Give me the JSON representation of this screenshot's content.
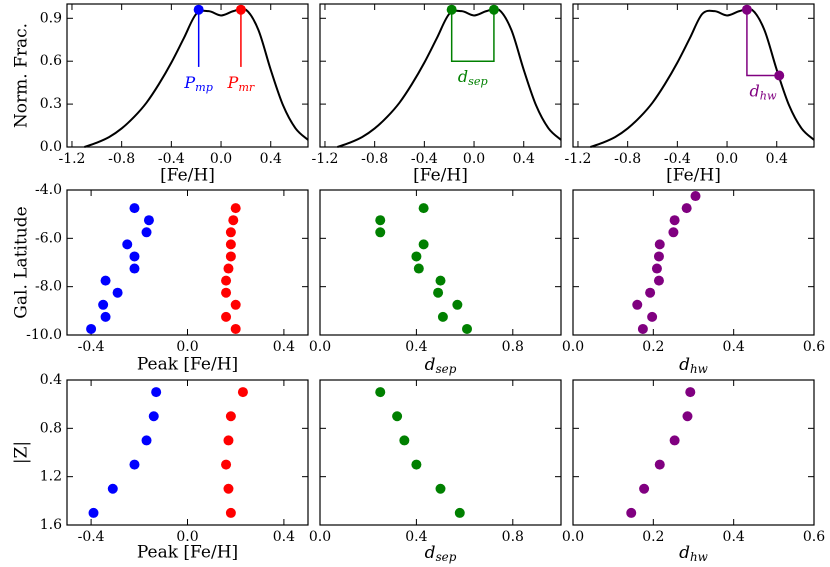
{
  "chart_data": [
    {
      "type": "line",
      "xlabel": "[Fe/H]",
      "ylabel": "Norm. Frac.",
      "xlim": [
        -1.24,
        0.7
      ],
      "ylim": [
        0,
        1.0
      ],
      "xticks": [
        -1.2,
        -0.8,
        -0.4,
        {
          "value": 0,
          "label": "0.0"
        },
        0.4
      ],
      "yticks": [
        {
          "value": 0,
          "label": "0.0"
        },
        0.3,
        0.6,
        0.9
      ],
      "x": [
        -1.1,
        -1.0,
        -0.9,
        -0.8,
        -0.7,
        -0.6,
        -0.5,
        -0.4,
        -0.3,
        -0.2,
        -0.1,
        0.0,
        0.1,
        0.2,
        0.3,
        0.4,
        0.5,
        0.6,
        0.7
      ],
      "series": [
        {
          "color": "#000000",
          "values": [
            0.0,
            0.03,
            0.07,
            0.13,
            0.21,
            0.31,
            0.44,
            0.59,
            0.76,
            0.93,
            0.95,
            0.92,
            0.95,
            0.96,
            0.82,
            0.54,
            0.29,
            0.13,
            0.05
          ]
        }
      ],
      "annotations": [
        {
          "color": "#0000ff",
          "label": {
            "main": "P",
            "sub": "mp"
          },
          "path_x": [
            -0.18,
            -0.18
          ],
          "path_y": [
            0.96,
            0.56
          ],
          "points_x": [
            -0.18
          ],
          "points_y": [
            0.96
          ]
        },
        {
          "color": "#ff0000",
          "label": {
            "main": "P",
            "sub": "mr"
          },
          "path_x": [
            0.16,
            0.16
          ],
          "path_y": [
            0.96,
            0.56
          ],
          "points_x": [
            0.16
          ],
          "points_y": [
            0.96
          ]
        }
      ]
    },
    {
      "type": "line",
      "xlabel": "[Fe/H]",
      "xlim": [
        -1.24,
        0.7
      ],
      "ylim": [
        0,
        1.0
      ],
      "xticks": [
        -1.2,
        -0.8,
        -0.4,
        {
          "value": 0,
          "label": "0.0"
        },
        0.4
      ],
      "x": [
        -1.1,
        -1.0,
        -0.9,
        -0.8,
        -0.7,
        -0.6,
        -0.5,
        -0.4,
        -0.3,
        -0.2,
        -0.1,
        0.0,
        0.1,
        0.2,
        0.3,
        0.4,
        0.5,
        0.6,
        0.7
      ],
      "series": [
        {
          "color": "#000000",
          "values": [
            0.0,
            0.03,
            0.07,
            0.13,
            0.21,
            0.31,
            0.44,
            0.59,
            0.76,
            0.93,
            0.95,
            0.92,
            0.95,
            0.96,
            0.82,
            0.54,
            0.29,
            0.13,
            0.05
          ]
        }
      ],
      "annotations": [
        {
          "color": "#008000",
          "label": {
            "main": "d",
            "sub": "sep"
          },
          "path_x": [
            -0.18,
            -0.18,
            0.16,
            0.16
          ],
          "path_y": [
            0.96,
            0.6,
            0.6,
            0.96
          ],
          "points_x": [
            -0.18,
            0.16
          ],
          "points_y": [
            0.96,
            0.96
          ]
        }
      ]
    },
    {
      "type": "line",
      "xlabel": "[Fe/H]",
      "xlim": [
        -1.24,
        0.7
      ],
      "ylim": [
        0,
        1.0
      ],
      "xticks": [
        -1.2,
        -0.8,
        -0.4,
        {
          "value": 0,
          "label": "0.0"
        },
        0.4
      ],
      "x": [
        -1.1,
        -1.0,
        -0.9,
        -0.8,
        -0.7,
        -0.6,
        -0.5,
        -0.4,
        -0.3,
        -0.2,
        -0.1,
        0.0,
        0.1,
        0.2,
        0.3,
        0.4,
        0.5,
        0.6,
        0.7
      ],
      "series": [
        {
          "color": "#000000",
          "values": [
            0.0,
            0.03,
            0.07,
            0.13,
            0.21,
            0.31,
            0.44,
            0.59,
            0.76,
            0.93,
            0.95,
            0.92,
            0.95,
            0.96,
            0.82,
            0.54,
            0.29,
            0.13,
            0.05
          ]
        }
      ],
      "annotations": [
        {
          "color": "#800080",
          "label": {
            "main": "d",
            "sub": "hw"
          },
          "path_x": [
            0.16,
            0.16,
            0.42
          ],
          "path_y": [
            0.96,
            0.5,
            0.5
          ],
          "points_x": [
            0.16,
            0.42
          ],
          "points_y": [
            0.96,
            0.5
          ]
        }
      ]
    },
    {
      "type": "scatter",
      "xlabel": "Peak [Fe/H]",
      "ylabel": "Gal. Latitude",
      "xlim": [
        -0.5,
        0.5
      ],
      "ylim": [
        -10,
        -4
      ],
      "xticks": [
        -0.4,
        {
          "value": 0,
          "label": "0.0"
        },
        0.4
      ],
      "yticks": [
        {
          "value": -4,
          "label": "-4.0"
        },
        {
          "value": -6,
          "label": "-6.0"
        },
        {
          "value": -8,
          "label": "-8.0"
        },
        {
          "value": -10,
          "label": "-10.0"
        }
      ],
      "series": [
        {
          "color": "#0000ff",
          "x": [
            -0.22,
            -0.16,
            -0.17,
            -0.25,
            -0.22,
            -0.22,
            -0.34,
            -0.29,
            -0.35,
            -0.34,
            -0.4
          ],
          "y": [
            -4.75,
            -5.25,
            -5.75,
            -6.25,
            -6.75,
            -7.25,
            -7.75,
            -8.25,
            -8.75,
            -9.25,
            -9.75
          ]
        },
        {
          "color": "#ff0000",
          "x": [
            0.2,
            0.19,
            0.18,
            0.18,
            0.18,
            0.17,
            0.16,
            0.16,
            0.2,
            0.16,
            0.2
          ],
          "y": [
            -4.75,
            -5.25,
            -5.75,
            -6.25,
            -6.75,
            -7.25,
            -7.75,
            -8.25,
            -8.75,
            -9.25,
            -9.75
          ]
        }
      ]
    },
    {
      "type": "scatter",
      "xlabel": {
        "main": "d",
        "sub": "sep"
      },
      "xlim": [
        0,
        1.0
      ],
      "ylim": [
        -10,
        -4
      ],
      "xticks": [
        {
          "value": 0,
          "label": "0.0"
        },
        0.4,
        0.8
      ],
      "series": [
        {
          "color": "#008000",
          "x": [
            0.43,
            0.25,
            0.25,
            0.43,
            0.4,
            0.41,
            0.5,
            0.49,
            0.57,
            0.51,
            0.61
          ],
          "y": [
            -4.75,
            -5.25,
            -5.75,
            -6.25,
            -6.75,
            -7.25,
            -7.75,
            -8.25,
            -8.75,
            -9.25,
            -9.75
          ]
        }
      ]
    },
    {
      "type": "scatter",
      "xlabel": {
        "main": "d",
        "sub": "hw"
      },
      "xlim": [
        0,
        0.6
      ],
      "ylim": [
        -10,
        -4
      ],
      "xticks": [
        {
          "value": 0,
          "label": "0.0"
        },
        0.2,
        0.4,
        0.6
      ],
      "series": [
        {
          "color": "#800080",
          "x": [
            0.305,
            0.283,
            0.253,
            0.25,
            0.216,
            0.214,
            0.209,
            0.214,
            0.192,
            0.16,
            0.197,
            0.174
          ],
          "y": [
            -4.25,
            -4.75,
            -5.25,
            -5.75,
            -6.25,
            -6.75,
            -7.25,
            -7.75,
            -8.25,
            -8.75,
            -9.25,
            -9.75
          ]
        }
      ]
    },
    {
      "type": "scatter",
      "xlabel": "Peak [Fe/H]",
      "ylabel": "|Z|",
      "xlim": [
        -0.5,
        0.5
      ],
      "ylim": [
        1.6,
        0.4
      ],
      "xticks": [
        -0.4,
        {
          "value": 0,
          "label": "0.0"
        },
        0.4
      ],
      "yticks": [
        0.4,
        0.8,
        1.2,
        1.6
      ],
      "series": [
        {
          "color": "#0000ff",
          "x": [
            -0.13,
            -0.14,
            -0.17,
            -0.22,
            -0.31,
            -0.39
          ],
          "y": [
            0.5,
            0.7,
            0.9,
            1.1,
            1.3,
            1.5
          ]
        },
        {
          "color": "#ff0000",
          "x": [
            0.23,
            0.18,
            0.17,
            0.16,
            0.17,
            0.18
          ],
          "y": [
            0.5,
            0.7,
            0.9,
            1.1,
            1.3,
            1.5
          ]
        }
      ]
    },
    {
      "type": "scatter",
      "xlabel": {
        "main": "d",
        "sub": "sep"
      },
      "xlim": [
        0,
        1.0
      ],
      "ylim": [
        1.6,
        0.4
      ],
      "xticks": [
        {
          "value": 0,
          "label": "0.0"
        },
        0.4,
        0.8
      ],
      "series": [
        {
          "color": "#008000",
          "x": [
            0.25,
            0.32,
            0.35,
            0.4,
            0.5,
            0.58
          ],
          "y": [
            0.5,
            0.7,
            0.9,
            1.1,
            1.3,
            1.5
          ]
        }
      ]
    },
    {
      "type": "scatter",
      "xlabel": {
        "main": "d",
        "sub": "hw"
      },
      "xlim": [
        0,
        0.6
      ],
      "ylim": [
        1.6,
        0.4
      ],
      "xticks": [
        {
          "value": 0,
          "label": "0.0"
        },
        0.2,
        0.4,
        0.6
      ],
      "series": [
        {
          "color": "#800080",
          "x": [
            0.292,
            0.285,
            0.253,
            0.216,
            0.177,
            0.145
          ],
          "y": [
            0.5,
            0.7,
            0.9,
            1.1,
            1.3,
            1.5
          ]
        }
      ]
    }
  ]
}
